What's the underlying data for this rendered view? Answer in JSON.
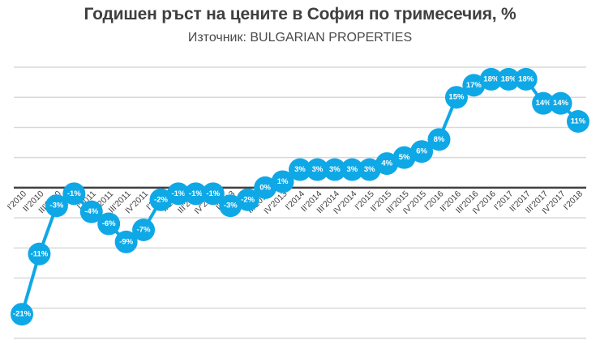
{
  "chart_data": {
    "type": "line",
    "title": "Годишен ръст на цените в София по тримесечия, %",
    "subtitle": "Източник: BULGARIAN PROPERTIES",
    "xlabel": "",
    "ylabel": "",
    "ylim": [
      -25,
      20
    ],
    "grid": true,
    "legend": null,
    "categories": [
      "I'2010",
      "II'2010",
      "III'2010",
      "IV'2010",
      "I'2011",
      "II'2011",
      "III'2011",
      "IV'2011",
      "I'2012",
      "II'2012",
      "III'2012",
      "IV'2012",
      "I'2013",
      "II'2013",
      "III'2013",
      "IV'2013",
      "I'2014",
      "II'2014",
      "III'2014",
      "IV'2014",
      "I'2015",
      "II'2015",
      "III'2015",
      "IV'2015",
      "I'2016",
      "II'2016",
      "III'2016",
      "IV'2016",
      "I'2017",
      "II'2017",
      "III'2017",
      "IV'2017",
      "I'2018"
    ],
    "series": [
      {
        "name": "Годишен ръст, %",
        "color": "#0fa8e6",
        "values": [
          -21,
          -11,
          -3,
          -1,
          -4,
          -6,
          -9,
          -7,
          -2,
          -1,
          -1,
          -1,
          -3,
          -2,
          0,
          1,
          3,
          3,
          3,
          3,
          3,
          4,
          5,
          6,
          8,
          15,
          17,
          18,
          18,
          18,
          14,
          14,
          11
        ],
        "labels": [
          "-21%",
          "-11%",
          "-3%",
          "-1%",
          "-4%",
          "-6%",
          "-9%",
          "-7%",
          "-2%",
          "-1%",
          "-1%",
          "-1%",
          "-3%",
          "-2%",
          "0%",
          "1%",
          "3%",
          "3%",
          "3%",
          "3%",
          "3%",
          "4%",
          "5%",
          "6%",
          "8%",
          "15%",
          "17%",
          "18%",
          "18%",
          "18%",
          "14%",
          "14%",
          "11%"
        ]
      }
    ]
  },
  "colors": {
    "series": "#0fa8e6",
    "zero_line": "#404040",
    "grid": "#d9d9d9",
    "title": "#3f3f3f"
  }
}
